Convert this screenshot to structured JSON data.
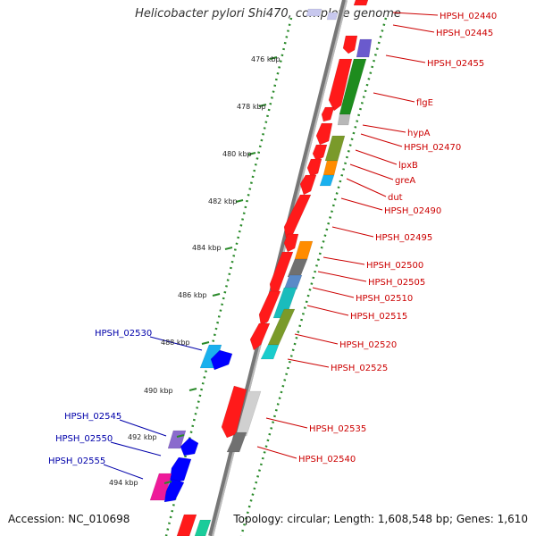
{
  "title": "Helicobacter pylori Shi470, complete genome",
  "footer": {
    "accession": "Accession: NC_010698",
    "topology": "Topology: circular; Length: 1,608,548 bp; Genes: 1,610"
  },
  "colors": {
    "forward_label": "#cc0000",
    "reverse_label": "#0000aa",
    "backbone": "#8a8a8a",
    "tick_green": "#2a8a2a"
  },
  "ticks": [
    "476 kbp",
    "478 kbp",
    "480 kbp",
    "482 kbp",
    "484 kbp",
    "486 kbp",
    "488 kbp",
    "490 kbp",
    "492 kbp",
    "494 kbp"
  ],
  "forward_labels": [
    "HPSH_02440",
    "HPSH_02445",
    "HPSH_02455",
    "flgE",
    "hypA",
    "HPSH_02470",
    "lpxB",
    "greA",
    "dut",
    "HPSH_02490",
    "HPSH_02495",
    "HPSH_02500",
    "HPSH_02505",
    "HPSH_02510",
    "HPSH_02515",
    "HPSH_02520",
    "HPSH_02525",
    "HPSH_02535",
    "HPSH_02540"
  ],
  "reverse_labels": [
    "HPSH_02530",
    "HPSH_02545",
    "HPSH_02550",
    "HPSH_02555"
  ]
}
